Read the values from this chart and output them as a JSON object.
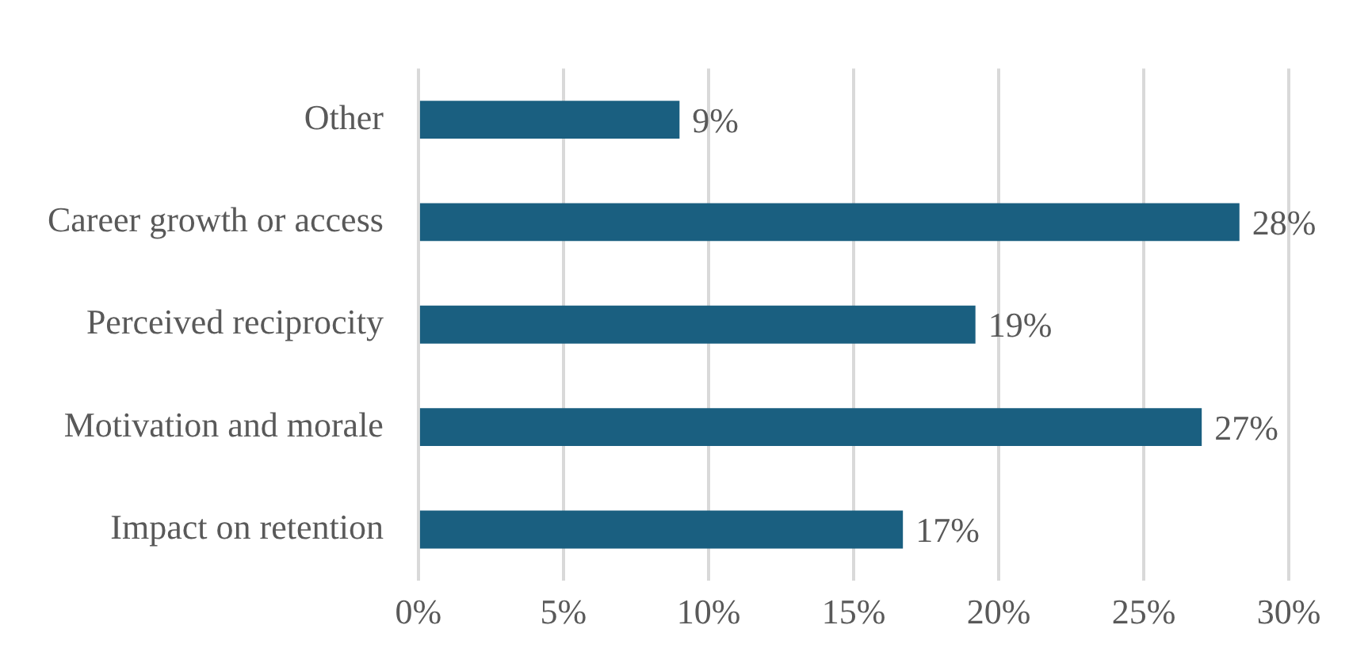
{
  "chart_data": {
    "type": "bar",
    "orientation": "horizontal",
    "categories": [
      "Other",
      "Career growth or access",
      "Perceived reciprocity",
      "Motivation and morale",
      "Impact on retention"
    ],
    "values": [
      9,
      28.3,
      19.2,
      27,
      16.7
    ],
    "value_labels": [
      "9%",
      "28%",
      "19%",
      "27%",
      "17%"
    ],
    "color": "#1a5f80",
    "xlim": [
      0,
      30
    ],
    "xticks": [
      {
        "value": 0,
        "label": "0%"
      },
      {
        "value": 5,
        "label": "5%"
      },
      {
        "value": 10,
        "label": "10%"
      },
      {
        "value": 15,
        "label": "15%"
      },
      {
        "value": 20,
        "label": "20%"
      },
      {
        "value": 25,
        "label": "25%"
      },
      {
        "value": 30,
        "label": "30%"
      }
    ],
    "grid": "x",
    "legend": false
  }
}
